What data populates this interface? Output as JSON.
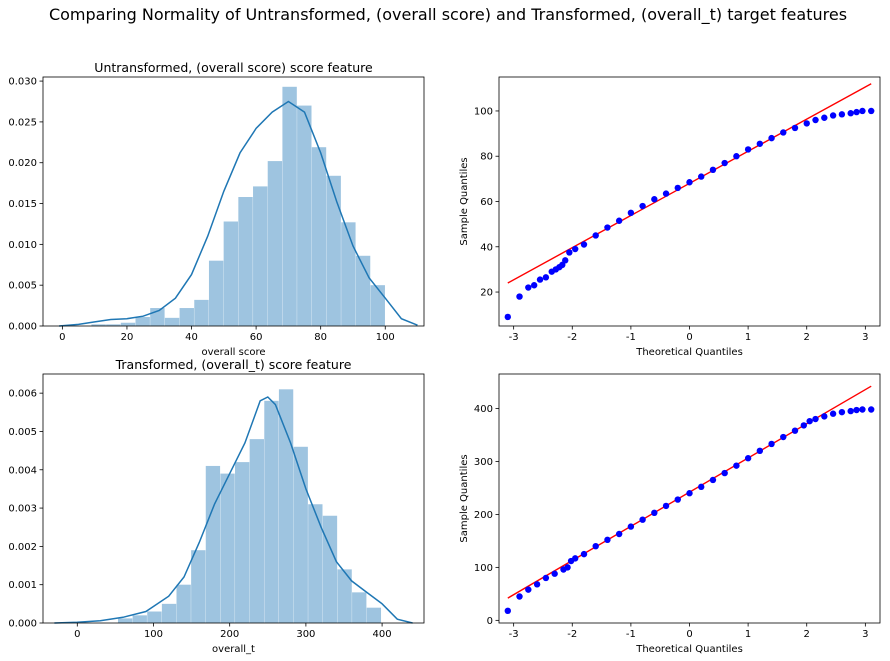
{
  "figure": {
    "suptitle": "Comparing Normality of Untransformed, (overall score) and Transformed, (overall_t)  target features"
  },
  "colors": {
    "hist": "#9ec4e0",
    "kde": "#1f77b4",
    "qq_points": "#0000ff",
    "qq_line": "#ff0000"
  },
  "chart_data": [
    {
      "type": "bar",
      "subtype": "histogram-with-kde",
      "title": "Untransformed, (overall score) score feature",
      "xlabel": "overall score",
      "ylabel": "",
      "xlim": [
        -6,
        112
      ],
      "ylim": [
        0,
        0.0305
      ],
      "xticks": [
        0,
        20,
        40,
        60,
        80,
        100
      ],
      "yticks": [
        0,
        0.005,
        0.01,
        0.015,
        0.02,
        0.025,
        0.03
      ],
      "ytick_labels": [
        "0.000",
        "0.005",
        "0.010",
        "0.015",
        "0.020",
        "0.025",
        "0.030"
      ],
      "bin_width": 4.55,
      "bins": [
        [
          9.0,
          0.0002
        ],
        [
          13.55,
          0.0002
        ],
        [
          18.1,
          0.0004
        ],
        [
          22.65,
          0.0011
        ],
        [
          27.2,
          0.0022
        ],
        [
          31.75,
          0.001
        ],
        [
          36.3,
          0.0022
        ],
        [
          40.85,
          0.0032
        ],
        [
          45.4,
          0.008
        ],
        [
          49.95,
          0.0128
        ],
        [
          54.5,
          0.0158
        ],
        [
          59.05,
          0.0171
        ],
        [
          63.6,
          0.0202
        ],
        [
          68.15,
          0.0293
        ],
        [
          72.7,
          0.027
        ],
        [
          77.25,
          0.0219
        ],
        [
          81.8,
          0.0184
        ],
        [
          86.35,
          0.0127
        ],
        [
          90.9,
          0.0086
        ],
        [
          95.45,
          0.005
        ]
      ],
      "kde": {
        "x": [
          -1,
          5,
          10,
          15,
          20,
          25,
          30,
          35,
          40,
          45,
          50,
          55,
          60,
          65,
          70,
          75,
          80,
          85,
          90,
          95,
          100,
          105,
          110
        ],
        "y": [
          0.0,
          0.0002,
          0.0005,
          0.0008,
          0.0009,
          0.0012,
          0.0019,
          0.0034,
          0.0063,
          0.011,
          0.0165,
          0.0212,
          0.0242,
          0.0262,
          0.0275,
          0.0262,
          0.0212,
          0.0152,
          0.0098,
          0.0059,
          0.0034,
          0.0009,
          0.0001
        ]
      },
      "grid": false,
      "legend": "none"
    },
    {
      "type": "scatter",
      "subtype": "qq-plot",
      "title": "",
      "xlabel": "Theoretical Quantiles",
      "ylabel": "Sample Quantiles",
      "xlim": [
        -3.25,
        3.25
      ],
      "ylim": [
        5,
        115
      ],
      "xticks": [
        -3,
        -2,
        -1,
        0,
        1,
        2,
        3
      ],
      "yticks": [
        20,
        40,
        60,
        80,
        100
      ],
      "reference_line": {
        "x": [
          -3.1,
          3.1
        ],
        "y": [
          24,
          112
        ]
      },
      "points": {
        "x": [
          -3.1,
          -2.9,
          -2.75,
          -2.65,
          -2.55,
          -2.45,
          -2.35,
          -2.28,
          -2.22,
          -2.17,
          -2.12,
          -2.05,
          -1.95,
          -1.8,
          -1.6,
          -1.4,
          -1.2,
          -1.0,
          -0.8,
          -0.6,
          -0.4,
          -0.2,
          0.0,
          0.2,
          0.4,
          0.6,
          0.8,
          1.0,
          1.2,
          1.4,
          1.6,
          1.8,
          2.0,
          2.15,
          2.3,
          2.45,
          2.6,
          2.75,
          2.85,
          2.95,
          3.1
        ],
        "y": [
          9,
          18,
          22,
          23,
          25.5,
          26.5,
          29,
          30,
          31,
          32,
          34,
          37.5,
          39,
          41,
          45,
          48.5,
          51.5,
          55,
          58,
          61,
          63.5,
          66,
          68.5,
          71,
          74,
          77,
          80,
          83,
          85.5,
          88,
          90.5,
          92.5,
          94.5,
          96,
          97,
          98,
          98.5,
          99,
          99.5,
          100,
          100
        ]
      },
      "grid": false,
      "legend": "none"
    },
    {
      "type": "bar",
      "subtype": "histogram-with-kde",
      "title": "Transformed, (overall_t) score feature",
      "xlabel": "overall_t",
      "ylabel": "",
      "xlim": [
        -45,
        455
      ],
      "ylim": [
        0,
        0.0065
      ],
      "xticks": [
        0,
        100,
        200,
        300,
        400
      ],
      "yticks": [
        0,
        0.001,
        0.002,
        0.003,
        0.004,
        0.005,
        0.006
      ],
      "ytick_labels": [
        "0.000",
        "0.001",
        "0.002",
        "0.003",
        "0.004",
        "0.005",
        "0.006"
      ],
      "bin_width": 19.2,
      "bins": [
        [
          15.0,
          0.0
        ],
        [
          34.2,
          0.0
        ],
        [
          53.4,
          0.00012
        ],
        [
          72.6,
          0.0002
        ],
        [
          91.8,
          0.0003
        ],
        [
          111.0,
          0.0005
        ],
        [
          130.2,
          0.001
        ],
        [
          149.4,
          0.0019
        ],
        [
          168.6,
          0.0041
        ],
        [
          187.8,
          0.0039
        ],
        [
          207.0,
          0.0042
        ],
        [
          226.2,
          0.0048
        ],
        [
          245.4,
          0.0058
        ],
        [
          264.6,
          0.0061
        ],
        [
          283.8,
          0.0046
        ],
        [
          303.0,
          0.0031
        ],
        [
          322.2,
          0.0028
        ],
        [
          341.4,
          0.0014
        ],
        [
          360.6,
          0.0008
        ],
        [
          379.8,
          0.0004
        ]
      ],
      "kde": {
        "x": [
          -30,
          0,
          30,
          60,
          90,
          120,
          140,
          160,
          180,
          200,
          220,
          240,
          250,
          260,
          280,
          300,
          320,
          340,
          360,
          380,
          400,
          420,
          440
        ],
        "y": [
          0.0,
          2e-05,
          6e-05,
          0.00015,
          0.0003,
          0.0007,
          0.0012,
          0.0021,
          0.0031,
          0.0039,
          0.0047,
          0.0058,
          0.0059,
          0.0057,
          0.0047,
          0.0035,
          0.0025,
          0.0016,
          0.0011,
          0.0008,
          0.0005,
          0.0001,
          0.0
        ]
      },
      "grid": false,
      "legend": "none"
    },
    {
      "type": "scatter",
      "subtype": "qq-plot",
      "title": "",
      "xlabel": "Theoretical Quantiles",
      "ylabel": "Sample Quantiles",
      "xlim": [
        -3.25,
        3.25
      ],
      "ylim": [
        -5,
        465
      ],
      "xticks": [
        -3,
        -2,
        -1,
        0,
        1,
        2,
        3
      ],
      "yticks": [
        0,
        100,
        200,
        300,
        400
      ],
      "reference_line": {
        "x": [
          -3.1,
          3.1
        ],
        "y": [
          42,
          442
        ]
      },
      "points": {
        "x": [
          -3.1,
          -2.9,
          -2.75,
          -2.6,
          -2.45,
          -2.3,
          -2.15,
          -2.08,
          -2.02,
          -1.95,
          -1.8,
          -1.6,
          -1.4,
          -1.2,
          -1.0,
          -0.8,
          -0.6,
          -0.4,
          -0.2,
          0.0,
          0.2,
          0.4,
          0.6,
          0.8,
          1.0,
          1.2,
          1.4,
          1.6,
          1.8,
          1.95,
          2.05,
          2.15,
          2.3,
          2.45,
          2.6,
          2.75,
          2.85,
          2.95,
          3.1
        ],
        "y": [
          18,
          45,
          58,
          68,
          80,
          88,
          96,
          100,
          112,
          117,
          125,
          140,
          152,
          163,
          177,
          190,
          203,
          216,
          228,
          240,
          252,
          265,
          278,
          292,
          306,
          320,
          333,
          346,
          358,
          368,
          376,
          380,
          385,
          390,
          393,
          395,
          397,
          398,
          398
        ]
      },
      "grid": false,
      "legend": "none"
    }
  ]
}
